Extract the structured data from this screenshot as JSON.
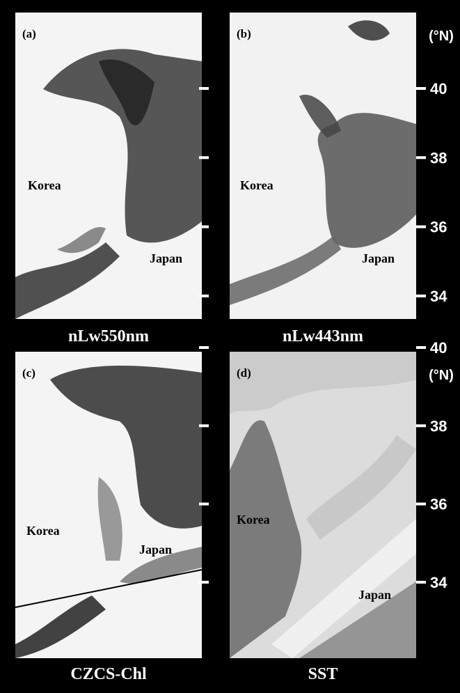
{
  "panels": [
    {
      "tag": "(a)",
      "caption": "nLw550nm",
      "labels": [
        "Korea",
        "Japan"
      ]
    },
    {
      "tag": "(b)",
      "caption": "nLw443nm",
      "labels": [
        "Korea",
        "Japan"
      ]
    },
    {
      "tag": "(c)",
      "caption": "CZCS-Chl",
      "labels": [
        "Korea",
        "Japan"
      ]
    },
    {
      "tag": "(d)",
      "caption": "SST",
      "labels": [
        "Korea",
        "Japan"
      ]
    }
  ],
  "latitude": {
    "unit": "(°N)",
    "ticks": [
      40,
      38,
      36,
      34
    ]
  }
}
